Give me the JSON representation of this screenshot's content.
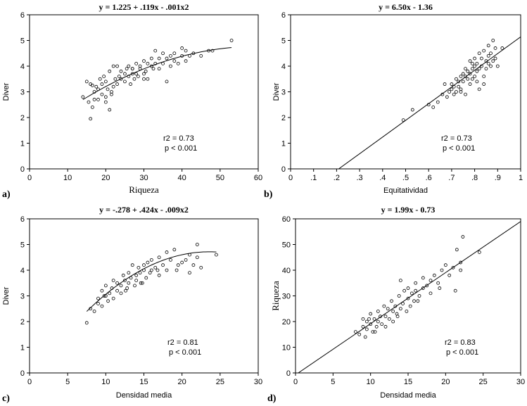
{
  "chart_data": [
    {
      "type": "scatter",
      "panel_label": "a)",
      "title": "y = 1.225 + .119x - .001x2",
      "xlabel": "Riqueza",
      "ylabel": "Diver",
      "xlim": [
        0,
        60
      ],
      "ylim": [
        0,
        6
      ],
      "xticks": [
        "0",
        "10",
        "20",
        "30",
        "40",
        "50",
        "60"
      ],
      "yticks": [
        "0",
        "1",
        "2",
        "3",
        "4",
        "5",
        "6"
      ],
      "fit": {
        "kind": "quadratic",
        "a": 1.225,
        "b": 0.119,
        "c": -0.001,
        "x_range": [
          14,
          53
        ]
      },
      "stats": [
        "r2 = 0.73",
        "p < 0.001"
      ],
      "series": [
        {
          "x": [
            14,
            15,
            15.5,
            16,
            16,
            16.5,
            17,
            17,
            17.5,
            18,
            18,
            18.5,
            19,
            19,
            19.5,
            20,
            20,
            20.5,
            21,
            21,
            21.5,
            22,
            22,
            22.5,
            23,
            23,
            23.5,
            24,
            24,
            25,
            25,
            25.5,
            26,
            26,
            26.5,
            27,
            27,
            27.5,
            28,
            28,
            28.5,
            29,
            29,
            30,
            30,
            30.5,
            31,
            31,
            32,
            32,
            32.5,
            33,
            33,
            34,
            34,
            35,
            35,
            36,
            36,
            37,
            37,
            38,
            38,
            39,
            40,
            40,
            41,
            41,
            42,
            43,
            45,
            47,
            48,
            53,
            16.5,
            21.5,
            20,
            27,
            30
          ],
          "y": [
            2.8,
            3.4,
            2.6,
            1.95,
            3.3,
            2.4,
            3.0,
            2.7,
            3.2,
            3.1,
            2.7,
            3.5,
            2.9,
            3.3,
            3.6,
            3.4,
            2.6,
            3.1,
            2.3,
            3.8,
            3.0,
            4.0,
            3.2,
            3.5,
            4.0,
            3.3,
            3.6,
            3.5,
            3.8,
            3.4,
            3.7,
            3.9,
            3.6,
            4.0,
            3.3,
            3.7,
            3.9,
            3.5,
            3.7,
            4.1,
            3.6,
            3.9,
            4.0,
            3.7,
            4.2,
            3.8,
            4.1,
            3.5,
            4.0,
            4.3,
            3.9,
            4.1,
            4.6,
            3.9,
            4.3,
            4.1,
            4.5,
            3.4,
            4.3,
            4.0,
            4.4,
            4.2,
            4.5,
            4.1,
            4.4,
            4.7,
            4.2,
            4.6,
            4.4,
            4.5,
            4.4,
            4.6,
            4.6,
            5.0,
            3.25,
            2.9,
            2.8,
            3.9,
            3.5
          ]
        }
      ]
    },
    {
      "type": "scatter",
      "panel_label": "b)",
      "title": "y = 6.50x - 1.36",
      "xlabel": "Equitatividad",
      "ylabel": "Diver",
      "xlim": [
        0,
        1
      ],
      "ylim": [
        0,
        6
      ],
      "xticks": [
        "0",
        ".1",
        ".2",
        ".3",
        ".4",
        ".5",
        ".6",
        ".7",
        ".8",
        ".9",
        "1"
      ],
      "yticks": [
        "0",
        "1",
        "2",
        "3",
        "4",
        "5",
        "6"
      ],
      "fit": {
        "kind": "linear",
        "slope": 6.5,
        "intercept": -1.36,
        "x_range": [
          0.2092,
          1.0
        ]
      },
      "stats": [
        "r2 = 0.73",
        "p < 0.001"
      ],
      "series": [
        {
          "x": [
            0.49,
            0.53,
            0.6,
            0.62,
            0.64,
            0.66,
            0.67,
            0.68,
            0.69,
            0.7,
            0.7,
            0.71,
            0.71,
            0.72,
            0.72,
            0.73,
            0.73,
            0.74,
            0.74,
            0.75,
            0.75,
            0.76,
            0.76,
            0.77,
            0.77,
            0.78,
            0.78,
            0.79,
            0.79,
            0.8,
            0.8,
            0.8,
            0.81,
            0.81,
            0.81,
            0.82,
            0.82,
            0.83,
            0.83,
            0.84,
            0.84,
            0.85,
            0.85,
            0.86,
            0.86,
            0.87,
            0.87,
            0.88,
            0.88,
            0.89,
            0.89,
            0.9,
            0.92,
            0.78,
            0.82,
            0.76,
            0.84,
            0.79,
            0.86,
            0.74
          ],
          "y": [
            1.9,
            2.3,
            2.5,
            2.4,
            2.6,
            2.9,
            3.3,
            2.8,
            3.0,
            3.1,
            3.3,
            2.9,
            3.2,
            3.5,
            3.0,
            3.4,
            3.2,
            3.6,
            3.1,
            3.7,
            3.4,
            3.9,
            3.6,
            3.5,
            3.8,
            4.2,
            3.7,
            3.9,
            3.5,
            4.0,
            4.3,
            3.6,
            4.1,
            3.8,
            3.4,
            4.5,
            3.9,
            4.3,
            4.0,
            4.6,
            3.6,
            4.2,
            3.9,
            4.8,
            4.1,
            4.5,
            4.0,
            5.0,
            4.2,
            4.7,
            4.3,
            4.0,
            4.7,
            3.3,
            3.1,
            2.9,
            3.3,
            4.1,
            4.4,
            3.0
          ]
        }
      ]
    },
    {
      "type": "scatter",
      "panel_label": "c)",
      "title": "y = -.278 + .424x - .009x2",
      "xlabel": "Densidad media",
      "ylabel": "Diver",
      "xlim": [
        0,
        30
      ],
      "ylim": [
        0,
        6
      ],
      "xticks": [
        "0",
        "5",
        "10",
        "15",
        "20",
        "25",
        "30"
      ],
      "yticks": [
        "0",
        "1",
        "2",
        "3",
        "4",
        "5",
        "6"
      ],
      "fit": {
        "kind": "quadratic",
        "a": -0.278,
        "b": 0.424,
        "c": -0.009,
        "x_range": [
          7.5,
          24.5
        ]
      },
      "stats": [
        "r2 = 0.81",
        "p < 0.001"
      ],
      "series": [
        {
          "x": [
            7.5,
            8,
            8.5,
            9,
            9,
            9.5,
            9.5,
            10,
            10,
            10.3,
            10.5,
            10.8,
            11,
            11,
            11.5,
            11.5,
            12,
            12,
            12.3,
            12.5,
            12.8,
            13,
            13,
            13.3,
            13.5,
            13.8,
            14,
            14,
            14.3,
            14.5,
            14.8,
            15,
            15,
            15.3,
            15.5,
            15.8,
            16,
            16,
            16.5,
            17,
            17,
            17.5,
            18,
            18,
            18.5,
            19,
            19.5,
            20,
            20.5,
            21,
            21,
            21.5,
            22,
            22,
            22.5,
            24.5,
            9.8,
            12.6,
            14.6,
            16.8,
            19.3
          ],
          "y": [
            1.95,
            2.5,
            2.4,
            2.7,
            2.9,
            3.2,
            2.6,
            3.0,
            3.4,
            2.8,
            3.1,
            3.3,
            2.9,
            3.6,
            3.2,
            3.5,
            3.4,
            3.1,
            3.8,
            3.6,
            3.3,
            3.9,
            3.5,
            3.7,
            4.2,
            3.4,
            3.8,
            3.6,
            4.1,
            3.9,
            3.5,
            4.2,
            4.0,
            3.7,
            4.3,
            3.9,
            4.4,
            4.0,
            4.1,
            4.5,
            3.8,
            4.2,
            4.7,
            4.0,
            4.4,
            4.8,
            4.2,
            4.3,
            4.4,
            4.6,
            3.9,
            4.2,
            5.0,
            4.5,
            4.1,
            4.6,
            3.0,
            3.2,
            3.5,
            4.0,
            4.0
          ]
        }
      ]
    },
    {
      "type": "scatter",
      "panel_label": "d)",
      "title": "y = 1.99x - 0.73",
      "xlabel": "Densidad media",
      "ylabel": "Riqueza",
      "xlim": [
        0,
        30
      ],
      "ylim": [
        0,
        60
      ],
      "xticks": [
        "0",
        "5",
        "10",
        "15",
        "20",
        "25",
        "30"
      ],
      "yticks": [
        "0",
        "10",
        "20",
        "30",
        "40",
        "50",
        "60"
      ],
      "fit": {
        "kind": "linear",
        "slope": 1.99,
        "intercept": -0.73,
        "x_range": [
          0.3668,
          30
        ]
      },
      "stats": [
        "r2 = 0.83",
        "p < 0.001"
      ],
      "series": [
        {
          "x": [
            8,
            8.5,
            9,
            9,
            9.3,
            9.5,
            9.5,
            10,
            10,
            10.3,
            10.5,
            10.8,
            11,
            11,
            11.3,
            11.5,
            11.8,
            12,
            12,
            12.3,
            12.5,
            12.8,
            13,
            13,
            13.3,
            13.5,
            13.8,
            14,
            14,
            14.3,
            14.5,
            14.8,
            15,
            15,
            15.3,
            15.5,
            15.8,
            16,
            16,
            16.5,
            17,
            17,
            17.5,
            18,
            18,
            18.5,
            19,
            19.5,
            20,
            20.5,
            21,
            21.5,
            22,
            22,
            22.3,
            24.5,
            10.6,
            13.6,
            16.3,
            19.2,
            21.3,
            9.8
          ],
          "y": [
            16,
            15,
            18,
            21,
            14,
            20,
            17,
            19,
            23,
            16,
            21,
            18,
            20,
            24,
            22,
            19,
            26,
            22,
            18,
            25,
            21,
            28,
            24,
            20,
            26,
            23,
            30,
            25,
            36,
            27,
            32,
            24,
            29,
            33,
            26,
            31,
            28,
            32,
            35,
            30,
            37,
            33,
            34,
            36,
            31,
            38,
            35,
            40,
            42,
            38,
            41,
            48,
            40,
            43,
            53,
            47,
            16,
            22,
            28,
            33,
            32,
            21
          ]
        }
      ]
    }
  ]
}
